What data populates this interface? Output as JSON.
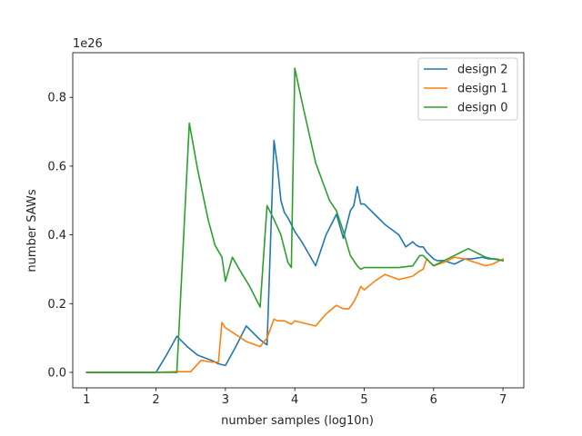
{
  "chart_data": {
    "type": "line",
    "title": "",
    "xlabel": "number samples (log10n)",
    "ylabel": "number SAWs",
    "offset_text": "1e26",
    "xlim": [
      0.8,
      7.3
    ],
    "ylim": [
      -0.045,
      0.93
    ],
    "xticks": [
      1,
      2,
      3,
      4,
      5,
      6,
      7
    ],
    "xtick_labels": [
      "1",
      "2",
      "3",
      "4",
      "5",
      "6",
      "7"
    ],
    "yticks": [
      0.0,
      0.2,
      0.4,
      0.6,
      0.8
    ],
    "ytick_labels": [
      "0.0",
      "0.2",
      "0.4",
      "0.6",
      "0.8"
    ],
    "grid": false,
    "legend_position": "top-right",
    "series": [
      {
        "name": "design 2",
        "color": "#1f77b4",
        "x": [
          1.0,
          1.3,
          1.5,
          1.7,
          1.85,
          2.0,
          2.15,
          2.3,
          2.45,
          2.6,
          2.8,
          2.9,
          3.0,
          3.15,
          3.3,
          3.5,
          3.6,
          3.7,
          3.75,
          3.8,
          3.85,
          3.9,
          4.0,
          4.1,
          4.2,
          4.3,
          4.45,
          4.6,
          4.7,
          4.8,
          4.85,
          4.9,
          4.95,
          5.0,
          5.15,
          5.3,
          5.5,
          5.6,
          5.7,
          5.75,
          5.8,
          5.85,
          5.9,
          6.0,
          6.05,
          6.15,
          6.3,
          6.45,
          6.55,
          6.7,
          6.8,
          6.9,
          7.0
        ],
        "values": [
          0.0,
          0.0,
          0.0,
          0.0,
          0.0,
          0.0,
          0.05,
          0.105,
          0.075,
          0.05,
          0.035,
          0.025,
          0.02,
          0.075,
          0.135,
          0.095,
          0.08,
          0.675,
          0.6,
          0.5,
          0.465,
          0.45,
          0.41,
          0.38,
          0.345,
          0.31,
          0.4,
          0.46,
          0.39,
          0.47,
          0.485,
          0.54,
          0.49,
          0.49,
          0.46,
          0.43,
          0.4,
          0.365,
          0.38,
          0.37,
          0.365,
          0.365,
          0.35,
          0.33,
          0.325,
          0.325,
          0.315,
          0.33,
          0.33,
          0.335,
          0.33,
          0.33,
          0.325
        ]
      },
      {
        "name": "design 1",
        "color": "#ff7f0e",
        "x": [
          1.0,
          1.5,
          2.0,
          2.3,
          2.5,
          2.65,
          2.8,
          2.9,
          2.95,
          3.0,
          3.15,
          3.3,
          3.5,
          3.6,
          3.7,
          3.75,
          3.85,
          3.95,
          4.0,
          4.1,
          4.3,
          4.45,
          4.6,
          4.7,
          4.78,
          4.85,
          4.9,
          4.95,
          5.0,
          5.15,
          5.3,
          5.5,
          5.7,
          5.8,
          5.85,
          5.9,
          6.0,
          6.15,
          6.3,
          6.45,
          6.6,
          6.75,
          6.85,
          7.0
        ],
        "values": [
          0.0,
          0.0,
          0.0,
          0.002,
          0.002,
          0.035,
          0.03,
          0.03,
          0.145,
          0.13,
          0.11,
          0.09,
          0.075,
          0.1,
          0.155,
          0.15,
          0.15,
          0.14,
          0.15,
          0.145,
          0.135,
          0.17,
          0.195,
          0.185,
          0.185,
          0.205,
          0.225,
          0.25,
          0.24,
          0.265,
          0.285,
          0.27,
          0.28,
          0.295,
          0.3,
          0.33,
          0.31,
          0.32,
          0.335,
          0.33,
          0.32,
          0.31,
          0.315,
          0.33
        ]
      },
      {
        "name": "design 0",
        "color": "#2ca02c",
        "x": [
          1.0,
          1.5,
          2.0,
          2.3,
          2.48,
          2.6,
          2.75,
          2.85,
          2.95,
          3.0,
          3.1,
          3.2,
          3.35,
          3.5,
          3.6,
          3.7,
          3.8,
          3.9,
          3.95,
          4.0,
          4.1,
          4.3,
          4.5,
          4.6,
          4.7,
          4.8,
          4.9,
          4.95,
          5.0,
          5.15,
          5.3,
          5.5,
          5.7,
          5.8,
          5.85,
          5.9,
          6.0,
          6.15,
          6.3,
          6.5,
          6.65,
          6.75,
          6.85,
          7.0
        ],
        "values": [
          0.0,
          0.0,
          0.0,
          0.0,
          0.725,
          0.59,
          0.445,
          0.37,
          0.335,
          0.265,
          0.335,
          0.3,
          0.25,
          0.19,
          0.485,
          0.445,
          0.4,
          0.32,
          0.305,
          0.885,
          0.79,
          0.61,
          0.5,
          0.47,
          0.41,
          0.34,
          0.31,
          0.3,
          0.305,
          0.305,
          0.305,
          0.305,
          0.31,
          0.34,
          0.34,
          0.33,
          0.31,
          0.325,
          0.34,
          0.36,
          0.345,
          0.335,
          0.33,
          0.325
        ]
      }
    ]
  }
}
